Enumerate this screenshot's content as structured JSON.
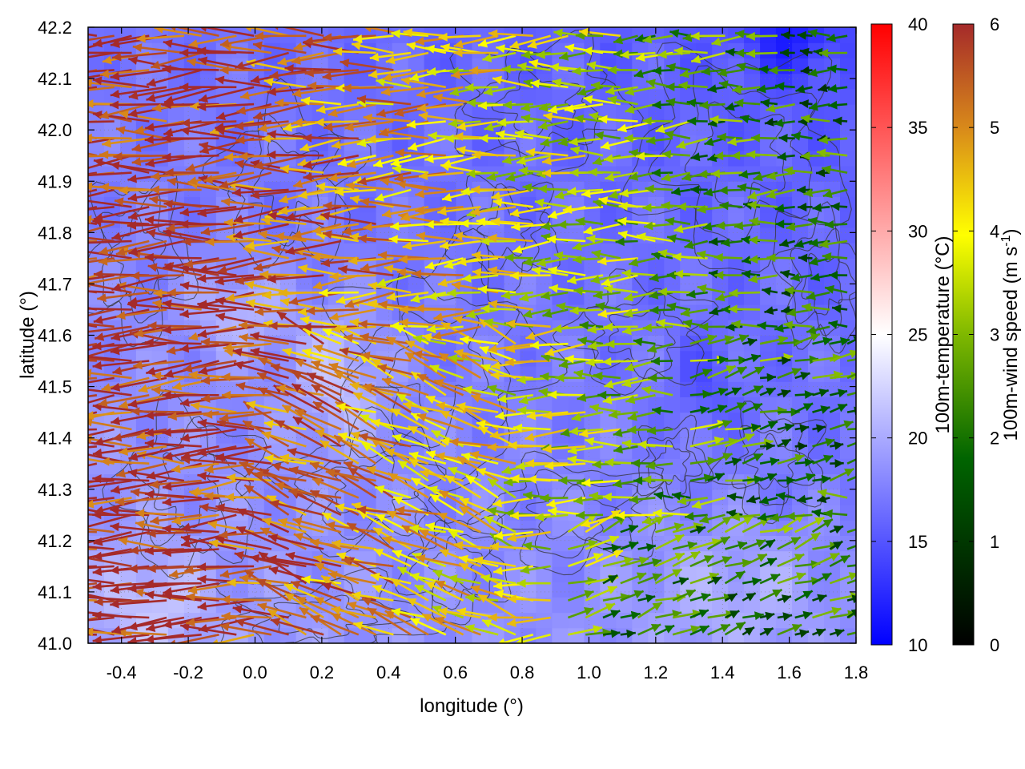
{
  "chart_data": {
    "type": "heatmap",
    "overlays": [
      "quiver",
      "contour"
    ],
    "xlabel": "longitude (°)",
    "ylabel": "latitude (°)",
    "xlim": [
      -0.5,
      1.8
    ],
    "ylim": [
      41.0,
      42.2
    ],
    "x_ticks": [
      "-0.4",
      "-0.2",
      "0.0",
      "0.2",
      "0.4",
      "0.6",
      "0.8",
      "1.0",
      "1.2",
      "1.4",
      "1.6",
      "1.8"
    ],
    "x_tick_values": [
      -0.4,
      -0.2,
      0.0,
      0.2,
      0.4,
      0.6,
      0.8,
      1.0,
      1.2,
      1.4,
      1.6,
      1.8
    ],
    "y_ticks": [
      "41.0",
      "41.1",
      "41.2",
      "41.3",
      "41.4",
      "41.5",
      "41.6",
      "41.7",
      "41.8",
      "41.9",
      "42.0",
      "42.1",
      "42.2"
    ],
    "y_tick_values": [
      41.0,
      41.1,
      41.2,
      41.3,
      41.4,
      41.5,
      41.6,
      41.7,
      41.8,
      41.9,
      42.0,
      42.1,
      42.2
    ],
    "grid": true,
    "colorbars": [
      {
        "label": "100m-temperature (°C)",
        "range": [
          10,
          40
        ],
        "ticks": [
          "10",
          "15",
          "20",
          "25",
          "30",
          "35",
          "40"
        ],
        "tick_values": [
          10,
          15,
          20,
          25,
          30,
          35,
          40
        ],
        "colors": [
          "#0000ff",
          "#ffffff",
          "#ff0000"
        ]
      },
      {
        "label": "100m-wind speed (m s",
        "label_sup": "-1",
        "label_end": ")",
        "range": [
          0,
          6
        ],
        "ticks": [
          "0",
          "1",
          "2",
          "3",
          "4",
          "5",
          "6"
        ],
        "tick_values": [
          0,
          1,
          2,
          3,
          4,
          5,
          6
        ],
        "colors": [
          "#000000",
          "#006400",
          "#7fb800",
          "#ffff00",
          "#d98b1a",
          "#a52a2a"
        ]
      }
    ],
    "temperature_field_approx": {
      "description_range": [
        14,
        24
      ]
    },
    "wind_field_approx": {
      "west_speed": 6,
      "east_speed": 2
    }
  }
}
